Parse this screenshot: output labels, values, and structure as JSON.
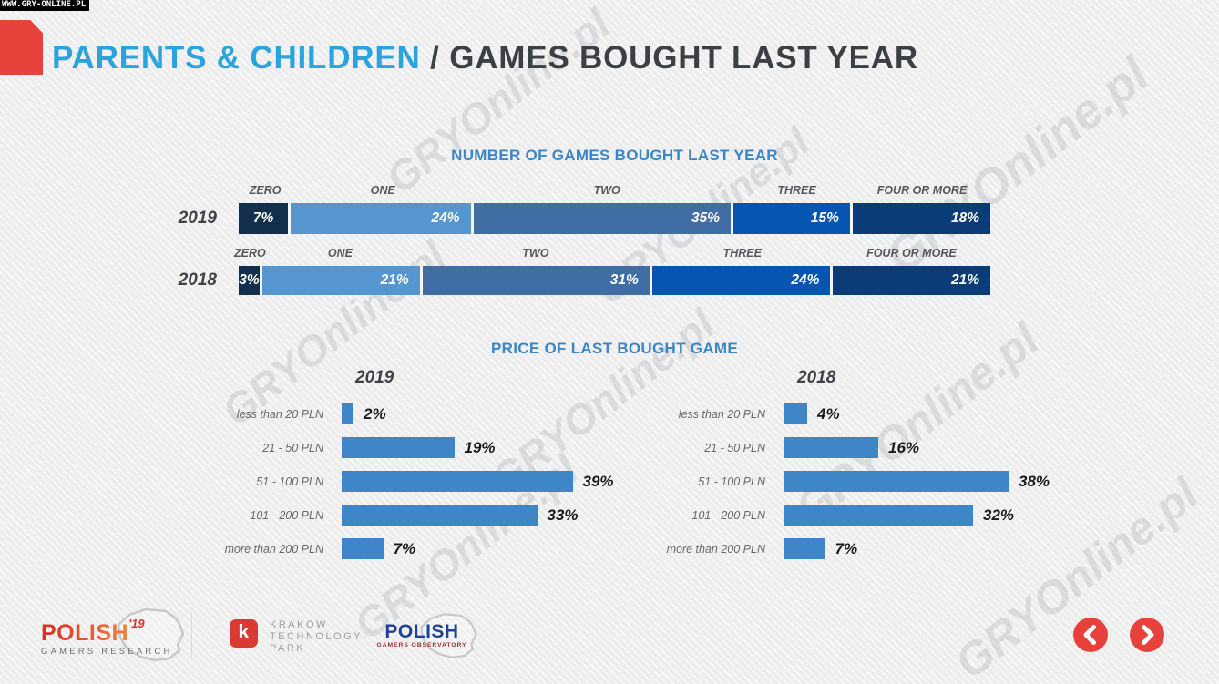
{
  "meta": {
    "site_badge": "WWW.GRY-ONLINE.PL",
    "watermark": "GRYOnline.pl"
  },
  "header": {
    "title_primary": "PARENTS & CHILDREN",
    "title_secondary": "/ GAMES BOUGHT LAST YEAR"
  },
  "chart_data": [
    {
      "type": "bar",
      "variant": "stacked-horizontal",
      "title": "NUMBER OF GAMES BOUGHT LAST YEAR",
      "categories": [
        "ZERO",
        "ONE",
        "TWO",
        "THREE",
        "FOUR OR MORE"
      ],
      "unit": "%",
      "series": [
        {
          "name": "2019",
          "values": [
            7,
            24,
            35,
            15,
            18
          ]
        },
        {
          "name": "2018",
          "values": [
            3,
            21,
            31,
            24,
            21
          ]
        }
      ],
      "palette": [
        "#12304e",
        "#5596d0",
        "#3f6da4",
        "#0656b1",
        "#0b3c78"
      ],
      "legend_position": "labels-above-segments",
      "value_labels": "inside-white"
    },
    {
      "type": "bar",
      "variant": "grouped-horizontal-panels",
      "title": "PRICE OF LAST BOUGHT GAME",
      "categories": [
        "less than 20 PLN",
        "21 - 50 PLN",
        "51 - 100 PLN",
        "101 - 200 PLN",
        "more than 200 PLN"
      ],
      "unit": "%",
      "series": [
        {
          "name": "2019",
          "values": [
            2,
            19,
            39,
            33,
            7
          ]
        },
        {
          "name": "2018",
          "values": [
            4,
            16,
            38,
            32,
            7
          ]
        }
      ],
      "bar_color": "#3e86c7",
      "value_labels": "right-of-bar"
    }
  ],
  "footer": {
    "logo_polish19": {
      "title": "POLISH",
      "year_suffix": "'19",
      "subtitle": "GAMERS RESEARCH"
    },
    "logo_ktp": {
      "letter": "k",
      "line1": "KRAKOW",
      "line2": "TECHNOLOGY",
      "line3": "PARK"
    },
    "logo_pgo": {
      "title": "POLISH",
      "subtitle": "GAMERS OBSERVATORY"
    }
  },
  "colors": {
    "accent_red": "#e8413c",
    "title_blue": "#2ba3dc",
    "title_dark": "#3c4044",
    "section_blue": "#3c86c5"
  }
}
